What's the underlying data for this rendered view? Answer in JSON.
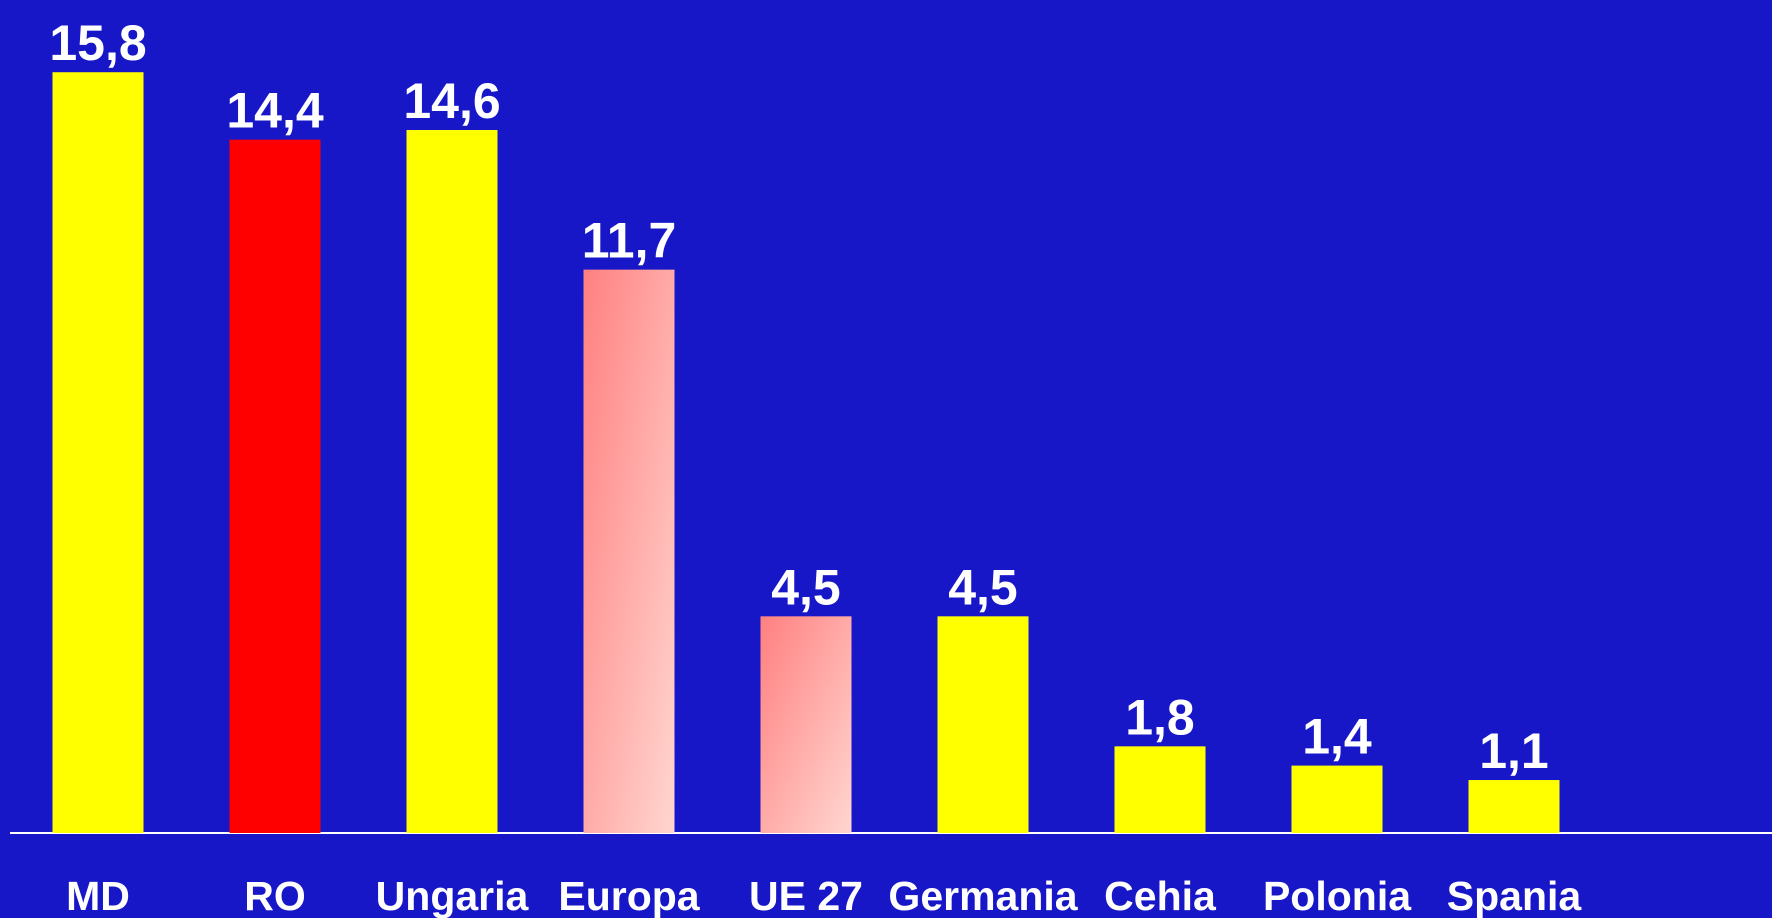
{
  "chart_data": {
    "type": "bar",
    "categories": [
      "MD",
      "RO",
      "Ungaria",
      "Europa",
      "UE 27",
      "Germania",
      "Cehia",
      "Polonia",
      "Spania"
    ],
    "values": [
      15.8,
      14.4,
      14.6,
      11.7,
      4.5,
      4.5,
      1.8,
      1.4,
      1.1
    ],
    "value_labels": [
      "15,8",
      "14,4",
      "14,6",
      "11,7",
      "4,5",
      "4,5",
      "1,8",
      "1,4",
      "1,1"
    ],
    "colors": [
      "#ffff00",
      "#ff0000",
      "#ffff00",
      [
        "#ff8080",
        "#ffd6d0"
      ],
      [
        "#ff8080",
        "#ffd6d0"
      ],
      "#ffff00",
      "#ffff00",
      "#ffff00",
      "#ffff00"
    ],
    "ylim": [
      0,
      17.3
    ]
  }
}
